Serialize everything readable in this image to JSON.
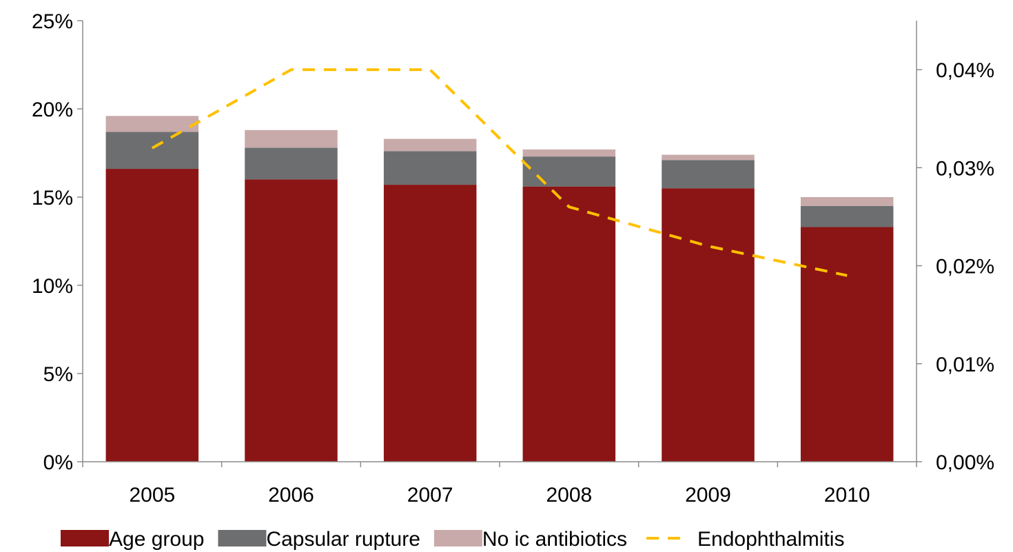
{
  "chart_data": {
    "type": "bar",
    "stacked": true,
    "categories": [
      "2005",
      "2006",
      "2007",
      "2008",
      "2009",
      "2010"
    ],
    "series": [
      {
        "name": "Age group",
        "axis": "left",
        "color": "#8b1514",
        "values": [
          16.6,
          16.0,
          15.7,
          15.6,
          15.5,
          13.3
        ]
      },
      {
        "name": "Capsular rupture",
        "axis": "left",
        "color": "#6d6e70",
        "values": [
          2.1,
          1.8,
          1.9,
          1.7,
          1.6,
          1.2
        ]
      },
      {
        "name": "No ic antibiotics",
        "axis": "left",
        "color": "#c8aaaa",
        "values": [
          0.9,
          1.0,
          0.7,
          0.4,
          0.3,
          0.5
        ]
      }
    ],
    "line_series": [
      {
        "name": "Endophthalmitis",
        "axis": "right",
        "type": "line",
        "style": "dashed",
        "color": "#ffc000",
        "values": [
          0.032,
          0.04,
          0.04,
          0.026,
          0.022,
          0.019
        ]
      }
    ],
    "y_left": {
      "min": 0,
      "max": 25,
      "ticks": [
        0,
        5,
        10,
        15,
        20,
        25
      ],
      "tick_labels": [
        "0%",
        "5%",
        "10%",
        "15%",
        "20%",
        "25%"
      ]
    },
    "y_right": {
      "min": 0,
      "max": 0.045,
      "ticks": [
        0,
        0.01,
        0.02,
        0.03,
        0.04
      ],
      "tick_labels": [
        "0,00%",
        "0,01%",
        "0,02%",
        "0,03%",
        "0,04%"
      ]
    },
    "title": "",
    "xlabel": "",
    "ylabel": "",
    "grid": false,
    "legend_position": "bottom"
  }
}
